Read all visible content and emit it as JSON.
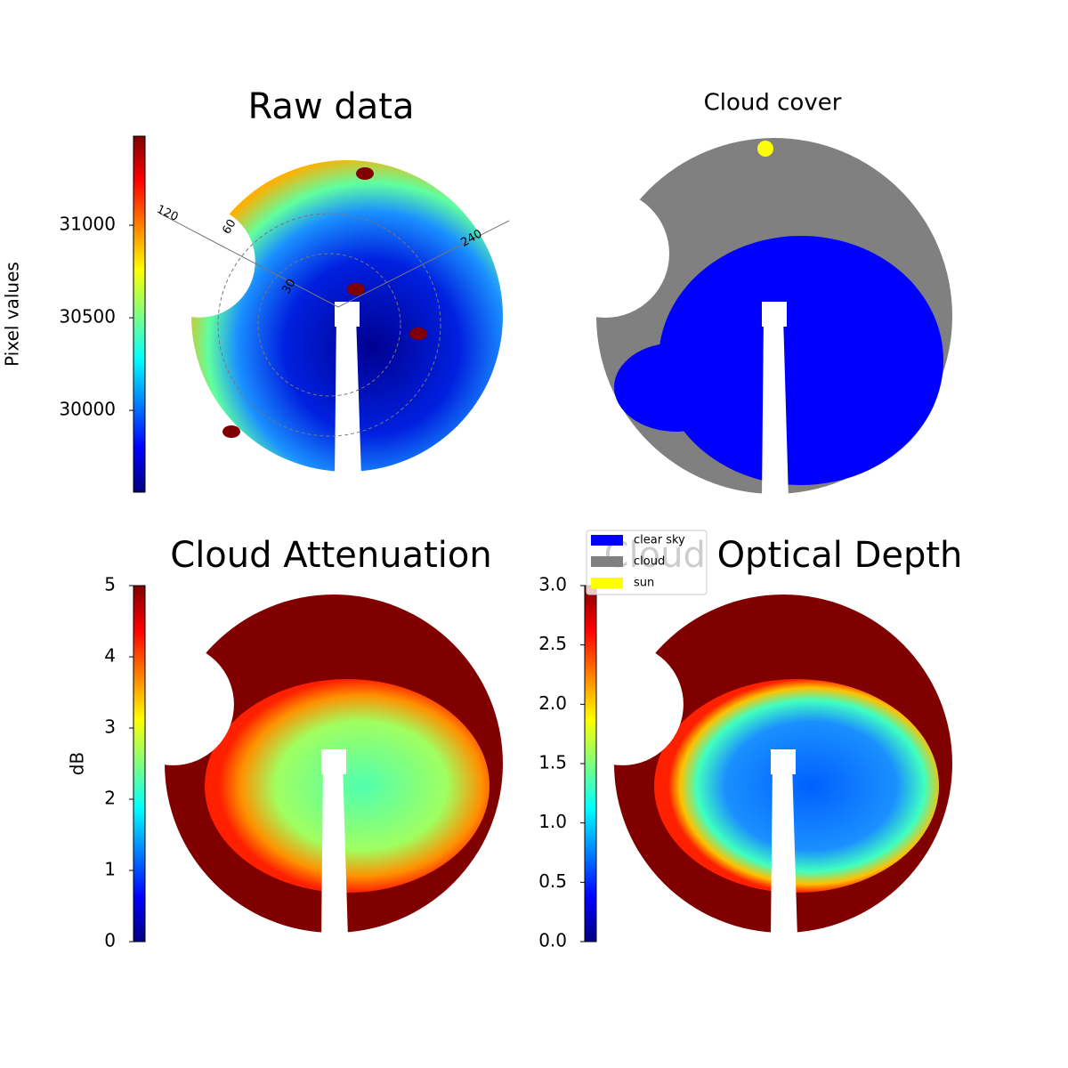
{
  "chart_data": [
    {
      "type": "image",
      "title": "Raw data",
      "colorbar_label": "Pixel values",
      "colormap": "jet",
      "ylim": [
        29558,
        31481
      ],
      "yticks": [
        30000,
        30500,
        31000
      ],
      "polar_labels": [
        "120",
        "60",
        "30",
        "240"
      ]
    },
    {
      "type": "image",
      "title": "Cloud cover",
      "legend": [
        {
          "label": "clear sky",
          "color": "#0000ff"
        },
        {
          "label": "cloud",
          "color": "#808080"
        },
        {
          "label": "sun",
          "color": "#ffff00"
        }
      ]
    },
    {
      "type": "image",
      "title": "Cloud Attenuation",
      "colorbar_label": "dB",
      "colormap": "jet",
      "ylim": [
        0,
        5
      ],
      "yticks": [
        0,
        1,
        2,
        3,
        4,
        5
      ]
    },
    {
      "type": "image",
      "title": "Cloud Optical Depth",
      "colormap": "jet",
      "ylim": [
        0,
        3
      ],
      "yticks": [
        {
          "value": 0,
          "label": "0.0"
        },
        {
          "value": 0.5,
          "label": "0.5"
        },
        {
          "value": 1,
          "label": "1.0"
        },
        {
          "value": 1.5,
          "label": "1.5"
        },
        {
          "value": 2,
          "label": "2.0"
        },
        {
          "value": 2.5,
          "label": "2.5"
        },
        {
          "value": 3,
          "label": "3.0"
        }
      ]
    }
  ]
}
